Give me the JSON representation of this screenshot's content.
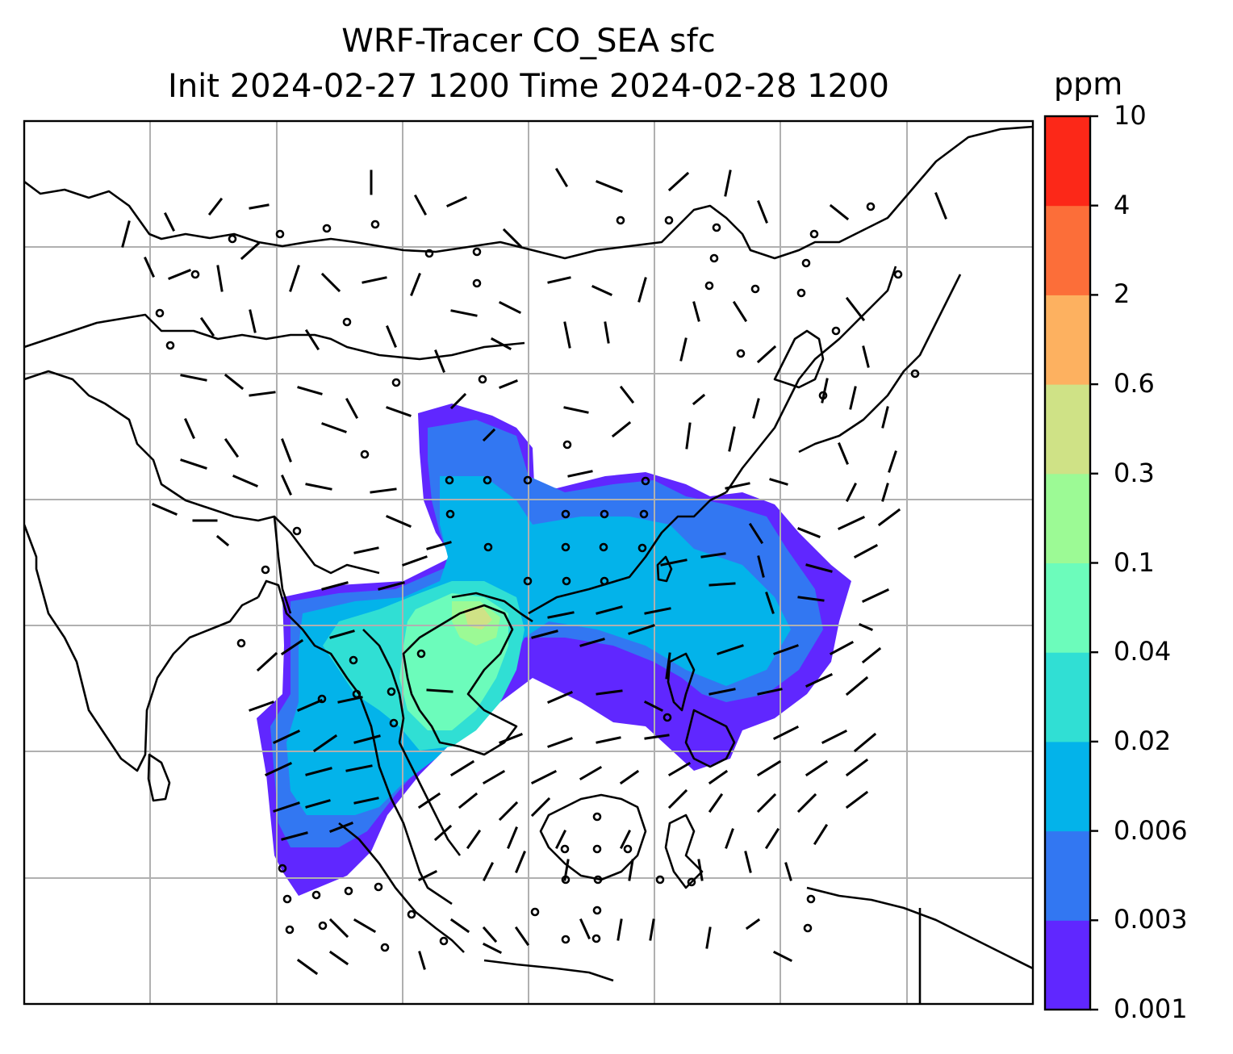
{
  "title": {
    "line1": "WRF-Tracer CO_SEA sfc",
    "line2": "Init 2024-02-27 1200 Time 2024-02-28 1200"
  },
  "colorbar": {
    "unit": "ppm",
    "ticks": [
      "0.001",
      "0.003",
      "0.006",
      "0.02",
      "0.04",
      "0.1",
      "0.3",
      "0.6",
      "2",
      "4",
      "10"
    ],
    "colors": [
      "#6027ff",
      "#3277f2",
      "#03b3ea",
      "#30dfd4",
      "#6cfcbb",
      "#9cfa95",
      "#cfe286",
      "#fdb160",
      "#fc6e39",
      "#fc2818"
    ]
  },
  "map": {
    "gridlines": true,
    "gridline_color": "#b0b0b0",
    "coastline_color": "#000000",
    "wind_barbs": true,
    "calm_markers": true
  }
}
